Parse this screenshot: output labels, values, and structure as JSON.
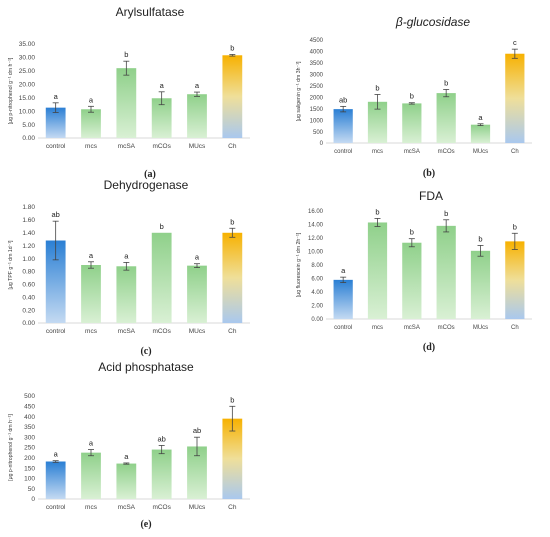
{
  "colors": {
    "green_top": "#8fd08a",
    "green_bottom": "#d9f0d4",
    "blue_top": "#2a7fd4",
    "blue_bottom": "#c4daf2",
    "gold_top": "#f7b100",
    "gold_mid": "#efdf9a",
    "gold_bottom": "#a9c8ee",
    "axis": "#d9d9d9",
    "error": "#444444"
  },
  "chart_data": [
    {
      "type": "bar",
      "panel": "(a)",
      "title": "Arylsulfatase",
      "ylabel": "[μg p-nitrophenol g⁻¹ dm h⁻¹]",
      "categories": [
        "control",
        "mcs",
        "mcSA",
        "mCOs",
        "MUcs",
        "Ch"
      ],
      "values": [
        11.3,
        10.7,
        26.0,
        14.8,
        16.3,
        30.8
      ],
      "errors": [
        1.8,
        1.1,
        2.6,
        2.4,
        0.8,
        0.3
      ],
      "letters": [
        "a",
        "a",
        "b",
        "a",
        "a",
        "b"
      ],
      "ylim": [
        0,
        35
      ],
      "yticks": [
        "0.00",
        "5.00",
        "10.00",
        "15.00",
        "20.00",
        "25.00",
        "30.00",
        "35.00"
      ]
    },
    {
      "type": "bar",
      "panel": "(b)",
      "title": "β-glucosidase",
      "ylabel": "[μg saligenin g⁻¹ dm 3h⁻¹]",
      "categories": [
        "control",
        "mcs",
        "mcSA",
        "mCOs",
        "MUcs",
        "Ch"
      ],
      "values": [
        1480,
        1800,
        1730,
        2180,
        800,
        3900
      ],
      "errors": [
        120,
        320,
        30,
        160,
        40,
        200
      ],
      "letters": [
        "ab",
        "b",
        "b",
        "b",
        "a",
        "c"
      ],
      "ylim": [
        0,
        4500
      ],
      "yticks": [
        "0",
        "500",
        "1000",
        "1500",
        "2000",
        "2500",
        "3000",
        "3500",
        "4000",
        "4500"
      ]
    },
    {
      "type": "bar",
      "panel": "(c)",
      "title": "Dehydrogenase",
      "ylabel": "[μg TPF g⁻¹ dm 1d⁻¹]",
      "categories": [
        "control",
        "mcs",
        "mcSA",
        "mCOs",
        "MUcs",
        "Ch"
      ],
      "values": [
        1.28,
        0.9,
        0.88,
        1.4,
        0.89,
        1.4
      ],
      "errors": [
        0.3,
        0.05,
        0.06,
        0.0,
        0.03,
        0.07
      ],
      "letters": [
        "ab",
        "a",
        "a",
        "b",
        "a",
        "b"
      ],
      "ylim": [
        0,
        1.8
      ],
      "yticks": [
        "0.00",
        "0.20",
        "0.40",
        "0.60",
        "0.80",
        "1.00",
        "1.20",
        "1.40",
        "1.60",
        "1.80"
      ]
    },
    {
      "type": "bar",
      "panel": "(d)",
      "title": "FDA",
      "ylabel": "[μg fluorescein g⁻¹ dm 2h⁻¹]",
      "categories": [
        "control",
        "mcs",
        "mcSA",
        "mCOs",
        "MUcs",
        "Ch"
      ],
      "values": [
        5.8,
        14.3,
        11.3,
        13.8,
        10.1,
        11.5
      ],
      "errors": [
        0.4,
        0.6,
        0.6,
        0.9,
        0.8,
        1.2
      ],
      "letters": [
        "a",
        "b",
        "b",
        "b",
        "b",
        "b"
      ],
      "ylim": [
        0,
        16
      ],
      "yticks": [
        "0.00",
        "2.00",
        "4.00",
        "6.00",
        "8.00",
        "10.00",
        "12.00",
        "14.00",
        "16.00"
      ]
    },
    {
      "type": "bar",
      "panel": "(e)",
      "title": "Acid phosphatase",
      "ylabel": "[μg p-nitrophenol g⁻¹ dm h⁻¹]",
      "categories": [
        "control",
        "mcs",
        "mcSA",
        "mCOs",
        "MUcs",
        "Ch"
      ],
      "values": [
        182,
        225,
        172,
        240,
        255,
        390
      ],
      "errors": [
        4,
        15,
        3,
        20,
        45,
        60
      ],
      "letters": [
        "a",
        "a",
        "a",
        "ab",
        "ab",
        "b"
      ],
      "ylim": [
        0,
        500
      ],
      "yticks": [
        "0",
        "50",
        "100",
        "150",
        "200",
        "250",
        "300",
        "350",
        "400",
        "450",
        "500"
      ]
    }
  ]
}
